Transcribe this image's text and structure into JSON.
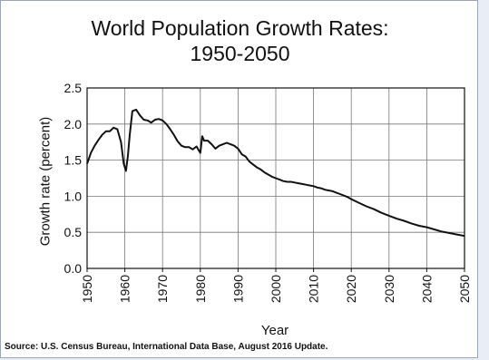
{
  "chart_data": {
    "type": "line",
    "title_line1": "World Population Growth Rates:",
    "title_line2": "1950-2050",
    "xlabel": "Year",
    "ylabel": "Growth rate (percent)",
    "source": "Source: U.S. Census Bureau, International Data Base, August 2016 Update.",
    "xlim": [
      1950,
      2050
    ],
    "ylim": [
      0.0,
      2.5
    ],
    "x_ticks": [
      "1950",
      "1960",
      "1970",
      "1980",
      "1990",
      "2000",
      "2010",
      "2020",
      "2030",
      "2040",
      "2050"
    ],
    "y_ticks": [
      "0.0",
      "0.5",
      "1.0",
      "1.5",
      "2.0",
      "2.5"
    ],
    "grid": true,
    "line_color": "#111111",
    "series": [
      {
        "x": [
          1950,
          1951,
          1952,
          1953,
          1954,
          1955,
          1956,
          1957,
          1958,
          1959,
          1959.7,
          1960.3,
          1960.8,
          1961.3,
          1962,
          1963,
          1964,
          1965,
          1966,
          1967,
          1968,
          1969,
          1970,
          1971,
          1972,
          1973,
          1974,
          1975,
          1976,
          1977,
          1978,
          1979,
          1980,
          1980.5,
          1981,
          1982,
          1983,
          1984,
          1985,
          1986,
          1987,
          1988,
          1989,
          1990,
          1991,
          1992,
          1993,
          1994,
          1995,
          1996,
          1997,
          1998,
          1999,
          2000,
          2001,
          2002,
          2003,
          2004,
          2005,
          2006,
          2007,
          2008,
          2009,
          2010,
          2011,
          2012,
          2013,
          2014,
          2015,
          2016,
          2017,
          2018,
          2019,
          2020,
          2022,
          2024,
          2026,
          2028,
          2030,
          2032,
          2034,
          2036,
          2038,
          2040,
          2042,
          2044,
          2046,
          2048,
          2050
        ],
        "y": [
          1.45,
          1.6,
          1.7,
          1.78,
          1.85,
          1.9,
          1.9,
          1.95,
          1.93,
          1.75,
          1.45,
          1.35,
          1.55,
          1.85,
          2.18,
          2.2,
          2.12,
          2.06,
          2.05,
          2.02,
          2.06,
          2.07,
          2.05,
          2.0,
          1.93,
          1.85,
          1.76,
          1.7,
          1.68,
          1.68,
          1.65,
          1.69,
          1.6,
          1.83,
          1.77,
          1.77,
          1.72,
          1.66,
          1.7,
          1.72,
          1.74,
          1.72,
          1.7,
          1.66,
          1.58,
          1.55,
          1.48,
          1.44,
          1.4,
          1.37,
          1.33,
          1.3,
          1.27,
          1.25,
          1.23,
          1.21,
          1.2,
          1.2,
          1.19,
          1.18,
          1.17,
          1.16,
          1.15,
          1.14,
          1.12,
          1.11,
          1.09,
          1.08,
          1.07,
          1.05,
          1.03,
          1.01,
          0.99,
          0.96,
          0.91,
          0.86,
          0.82,
          0.77,
          0.73,
          0.69,
          0.66,
          0.62,
          0.59,
          0.57,
          0.54,
          0.51,
          0.49,
          0.47,
          0.45
        ]
      }
    ]
  }
}
